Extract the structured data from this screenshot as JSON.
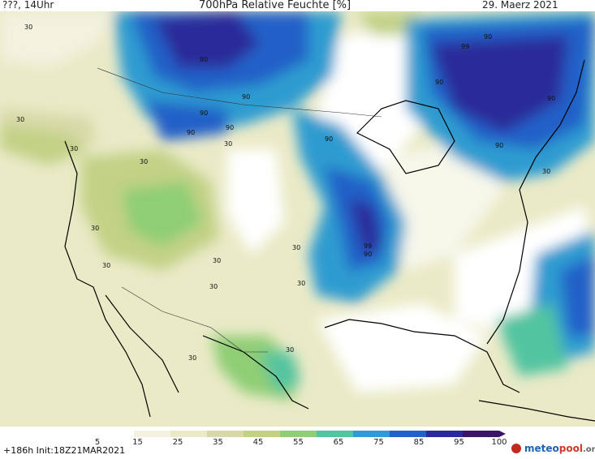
{
  "header": {
    "left": "???, 14Uhr",
    "title": "700hPa Relative Feuchte [%]",
    "date": "29. Maerz 2021"
  },
  "map": {
    "contour_labels": [
      "30",
      "90",
      "99"
    ]
  },
  "colorbar": {
    "ticks": [
      "5",
      "15",
      "25",
      "35",
      "45",
      "55",
      "65",
      "75",
      "85",
      "95",
      "100"
    ],
    "colors": [
      "#ffffff",
      "#f2f2df",
      "#eaeac7",
      "#d8d9a8",
      "#c2d186",
      "#8fce74",
      "#52c4a0",
      "#2f9bd0",
      "#2060c8",
      "#2a2a9a",
      "#3c1466"
    ]
  },
  "footer": {
    "run": "+186h  Init:18Z21MAR2021",
    "brand_a": "meteo",
    "brand_b": "pool",
    "brand_c": ".org"
  }
}
